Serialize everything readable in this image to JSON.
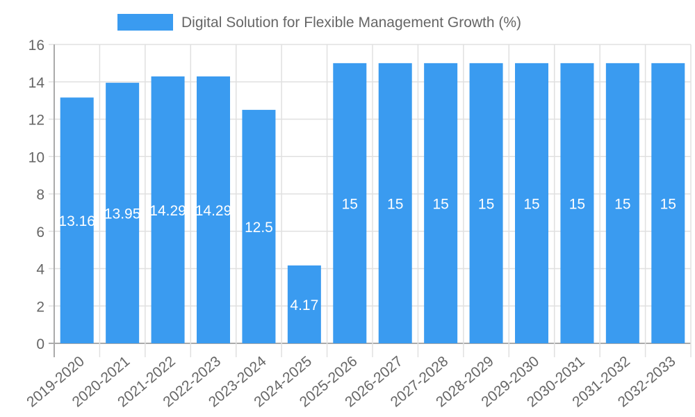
{
  "chart_data": {
    "type": "bar",
    "title": "",
    "xlabel": "",
    "ylabel": "",
    "legend": {
      "position": "top",
      "entries": [
        "Digital Solution for Flexible Management Growth (%)"
      ]
    },
    "categories": [
      "2019-2020",
      "2020-2021",
      "2021-2022",
      "2022-2023",
      "2023-2024",
      "2024-2025",
      "2025-2026",
      "2026-2027",
      "2027-2028",
      "2028-2029",
      "2029-2030",
      "2030-2031",
      "2031-2032",
      "2032-2033"
    ],
    "series": [
      {
        "name": "Digital Solution for Flexible Management Growth (%)",
        "color": "#3a9bf0",
        "values": [
          13.16,
          13.95,
          14.29,
          14.29,
          12.5,
          4.17,
          15,
          15,
          15,
          15,
          15,
          15,
          15,
          15
        ]
      }
    ],
    "data_labels": [
      "13.16",
      "13.95",
      "14.29",
      "14.29",
      "12.5",
      "4.17",
      "15",
      "15",
      "15",
      "15",
      "15",
      "15",
      "15",
      "15"
    ],
    "ylim": [
      0,
      16
    ],
    "yticks": [
      0,
      2,
      4,
      6,
      8,
      10,
      12,
      14,
      16
    ],
    "grid": true
  },
  "colors": {
    "bar": "#3a9bf0",
    "grid": "#e0e0e0",
    "axis": "#aaaaaa",
    "text": "#666666",
    "label": "#ffffff"
  }
}
